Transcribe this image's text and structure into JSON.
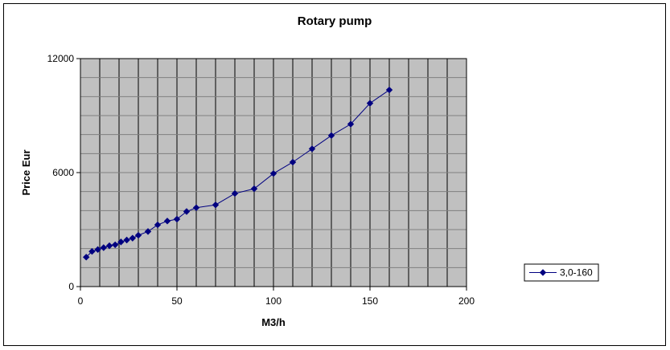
{
  "chart_data": {
    "type": "line",
    "title": "Rotary pump",
    "xlabel": "M3/h",
    "ylabel": "Price Eur",
    "xlim": [
      0,
      200
    ],
    "ylim": [
      0,
      12000
    ],
    "x_ticks": [
      "0",
      "50",
      "100",
      "150",
      "200"
    ],
    "y_ticks": [
      "0",
      "6000",
      "12000"
    ],
    "x_minor_step": 10,
    "y_minor_step": 1000,
    "grid": true,
    "plot_background": "#c0c0c0",
    "grid_color": "#000000",
    "legend_position": "right",
    "series": [
      {
        "name": "3,0-160",
        "color": "#000080",
        "marker": "diamond",
        "x": [
          3,
          6,
          9,
          12,
          15,
          18,
          21,
          24,
          27,
          30,
          35,
          40,
          45,
          50,
          55,
          60,
          70,
          80,
          90,
          100,
          110,
          120,
          130,
          140,
          150,
          160
        ],
        "y": [
          1550,
          1850,
          1950,
          2050,
          2150,
          2200,
          2350,
          2450,
          2550,
          2700,
          2900,
          3250,
          3450,
          3550,
          3950,
          4150,
          4300,
          4900,
          5150,
          5950,
          6550,
          7250,
          7950,
          8550,
          9650,
          10350
        ]
      }
    ]
  }
}
